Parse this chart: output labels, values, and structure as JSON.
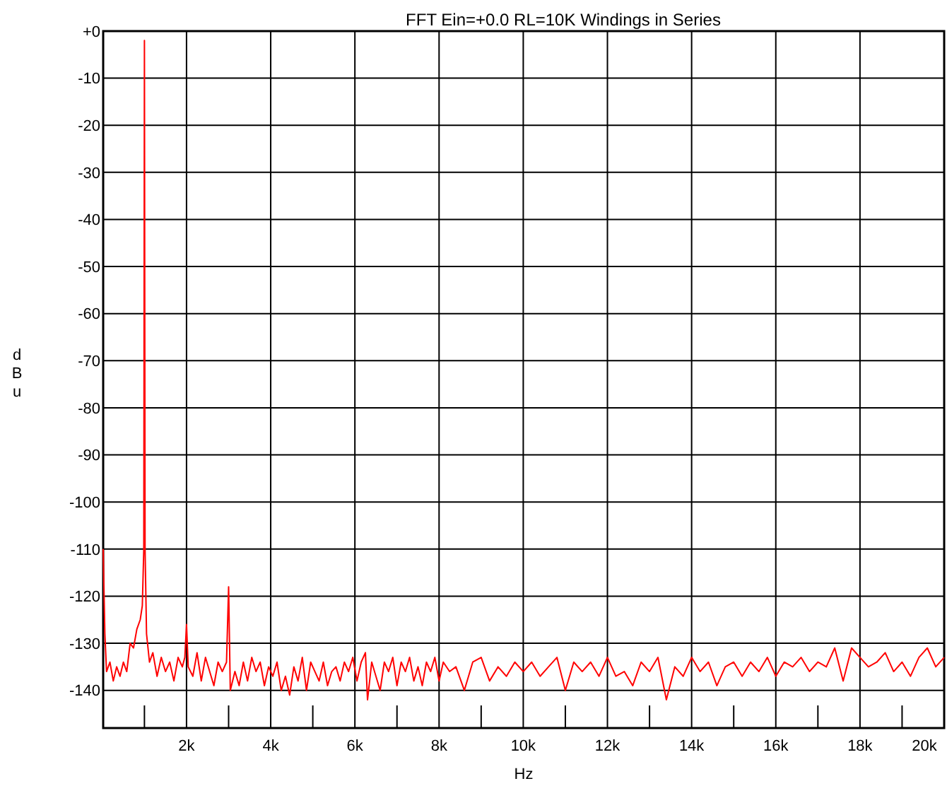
{
  "chart_data": {
    "type": "line",
    "title": "FFT Ein=+0.0  RL=10K  Windings in Series",
    "xlabel": "Hz",
    "ylabel": "dBu",
    "xlim": [
      20,
      20000
    ],
    "ylim": [
      -148,
      0
    ],
    "xticks": [
      {
        "value": 1000,
        "label": null
      },
      {
        "value": 2000,
        "label": "2k"
      },
      {
        "value": 3000,
        "label": null
      },
      {
        "value": 4000,
        "label": "4k"
      },
      {
        "value": 5000,
        "label": null
      },
      {
        "value": 6000,
        "label": "6k"
      },
      {
        "value": 7000,
        "label": null
      },
      {
        "value": 8000,
        "label": "8k"
      },
      {
        "value": 9000,
        "label": null
      },
      {
        "value": 10000,
        "label": "10k"
      },
      {
        "value": 11000,
        "label": null
      },
      {
        "value": 12000,
        "label": "12k"
      },
      {
        "value": 13000,
        "label": null
      },
      {
        "value": 14000,
        "label": "14k"
      },
      {
        "value": 15000,
        "label": null
      },
      {
        "value": 16000,
        "label": "16k"
      },
      {
        "value": 17000,
        "label": null
      },
      {
        "value": 18000,
        "label": "18k"
      },
      {
        "value": 19000,
        "label": null
      },
      {
        "value": 20000,
        "label": "20k"
      }
    ],
    "yticks": [
      {
        "value": 0,
        "label": "+0"
      },
      -10,
      -20,
      -30,
      -40,
      -50,
      -60,
      -70,
      -80,
      -90,
      -100,
      -110,
      -120,
      -130,
      -140
    ],
    "grid": true,
    "series": [
      {
        "color": "#ff0000",
        "x": [
          20,
          60,
          100,
          180,
          260,
          340,
          420,
          500,
          580,
          660,
          740,
          820,
          900,
          950,
          985,
          1000,
          1015,
          1050,
          1120,
          1200,
          1300,
          1400,
          1500,
          1600,
          1700,
          1800,
          1900,
          1960,
          2000,
          2040,
          2150,
          2250,
          2350,
          2450,
          2550,
          2650,
          2750,
          2850,
          2950,
          3000,
          3040,
          3150,
          3250,
          3350,
          3450,
          3550,
          3650,
          3750,
          3850,
          3950,
          4050,
          4150,
          4250,
          4350,
          4450,
          4550,
          4650,
          4750,
          4850,
          4950,
          5050,
          5150,
          5250,
          5350,
          5450,
          5550,
          5650,
          5750,
          5850,
          5950,
          6050,
          6150,
          6250,
          6300,
          6400,
          6500,
          6600,
          6700,
          6800,
          6900,
          7000,
          7100,
          7200,
          7300,
          7400,
          7500,
          7600,
          7700,
          7800,
          7900,
          8000,
          8100,
          8250,
          8400,
          8600,
          8800,
          9000,
          9200,
          9400,
          9600,
          9800,
          10000,
          10200,
          10400,
          10600,
          10800,
          11000,
          11200,
          11400,
          11600,
          11800,
          12000,
          12200,
          12400,
          12600,
          12800,
          13000,
          13200,
          13400,
          13600,
          13800,
          14000,
          14200,
          14400,
          14600,
          14800,
          15000,
          15200,
          15400,
          15600,
          15800,
          16000,
          16200,
          16400,
          16600,
          16800,
          17000,
          17200,
          17400,
          17600,
          17800,
          18000,
          18200,
          18400,
          18600,
          18800,
          19000,
          19200,
          19400,
          19600,
          19800,
          20000
        ],
        "values": [
          -110,
          -128,
          -136,
          -134,
          -138,
          -135,
          -137,
          -134,
          -136,
          -130,
          -131,
          -127,
          -125,
          -122,
          -110,
          -2,
          -110,
          -128,
          -134,
          -132,
          -137,
          -133,
          -136,
          -134,
          -138,
          -133,
          -135,
          -133,
          -126,
          -135,
          -137,
          -132,
          -138,
          -133,
          -136,
          -139,
          -134,
          -136,
          -134,
          -118,
          -140,
          -136,
          -139,
          -134,
          -138,
          -133,
          -136,
          -134,
          -139,
          -135,
          -137,
          -134,
          -140,
          -137,
          -141,
          -135,
          -138,
          -133,
          -140,
          -134,
          -136,
          -138,
          -134,
          -139,
          -136,
          -135,
          -138,
          -134,
          -136,
          -133,
          -138,
          -134,
          -132,
          -142,
          -134,
          -137,
          -140,
          -134,
          -136,
          -133,
          -139,
          -134,
          -136,
          -133,
          -138,
          -135,
          -139,
          -134,
          -136,
          -133,
          -138,
          -134,
          -136,
          -135,
          -140,
          -134,
          -133,
          -138,
          -135,
          -137,
          -134,
          -136,
          -134,
          -137,
          -135,
          -133,
          -140,
          -134,
          -136,
          -134,
          -137,
          -133,
          -137,
          -136,
          -139,
          -134,
          -136,
          -133,
          -142,
          -135,
          -137,
          -133,
          -136,
          -134,
          -139,
          -135,
          -134,
          -137,
          -134,
          -136,
          -133,
          -137,
          -134,
          -135,
          -133,
          -136,
          -134,
          -135,
          -131,
          -138,
          -131,
          -133,
          -135,
          -134,
          -132,
          -136,
          -134,
          -137,
          -133,
          -131,
          -135,
          -133
        ]
      }
    ]
  }
}
